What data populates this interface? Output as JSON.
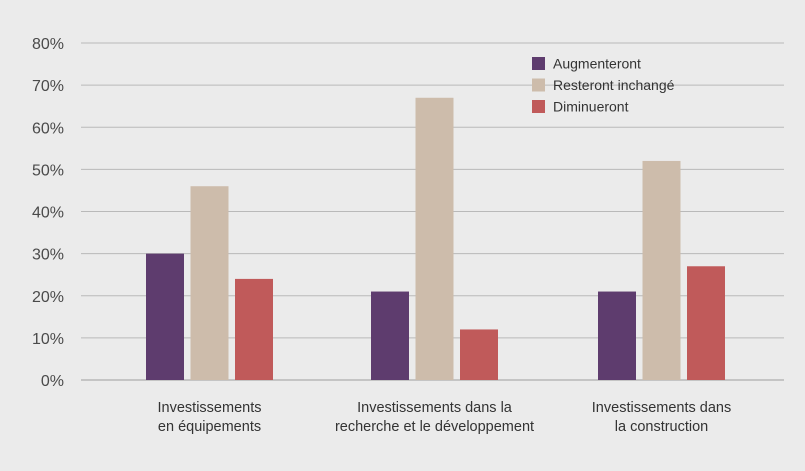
{
  "chart_data": {
    "type": "bar",
    "title": "",
    "xlabel": "",
    "ylabel": "",
    "ylim": [
      0,
      80
    ],
    "yticks": [
      0,
      10,
      20,
      30,
      40,
      50,
      60,
      70,
      80
    ],
    "ytick_labels": [
      "0%",
      "10%",
      "20%",
      "30%",
      "40%",
      "50%",
      "60%",
      "70%",
      "80%"
    ],
    "grid": true,
    "legend_position": "top-right",
    "categories": [
      [
        "Investissements",
        "en équipements"
      ],
      [
        "Investissements dans la",
        "recherche et le développement"
      ],
      [
        "Investissements dans",
        "la construction"
      ]
    ],
    "series": [
      {
        "name": "Augmenteront",
        "color": "#5e3c6e",
        "values": [
          30,
          21,
          21
        ]
      },
      {
        "name": "Resteront inchangé",
        "color": "#cdbcab",
        "values": [
          46,
          67,
          52
        ]
      },
      {
        "name": "Diminueront",
        "color": "#c05a5a",
        "values": [
          24,
          12,
          27
        ]
      }
    ]
  },
  "colors": {
    "background": "#ebebeb",
    "gridline": "#b9b9b9",
    "baseline": "#9e9e9e"
  }
}
